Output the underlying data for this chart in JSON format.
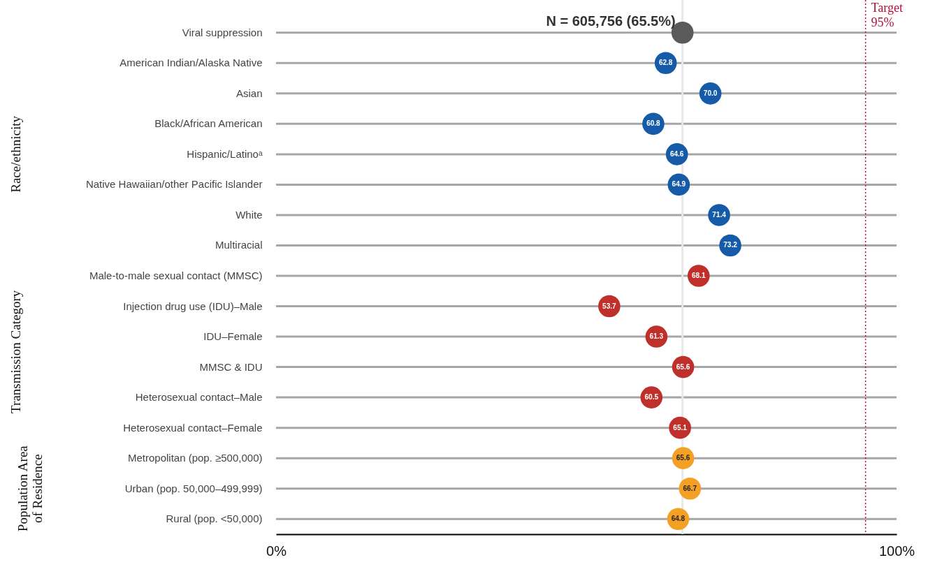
{
  "chart_data": {
    "type": "lollipop",
    "categories": [
      "Viral suppression",
      "American Indian/Alaska Native",
      "Asian",
      "Black/African American",
      "Hispanic/Latinoᵃ",
      "Native Hawaiian/other Pacific Islander",
      "White",
      "Multiracial",
      "Male-to-male sexual contact (MMSC)",
      "Injection drug use (IDU)–Male",
      "IDU–Female",
      "MMSC & IDU",
      "Heterosexual contact–Male",
      "Heterosexual contact–Female",
      "Metropolitan (pop. ≥500,000)",
      "Urban (pop. 50,000–499,999)",
      "Rural (pop. <50,000)"
    ],
    "series": [
      {
        "color": "#5a5a5a",
        "values": [
          65.5,
          null,
          null,
          null,
          null,
          null,
          null,
          null,
          null,
          null,
          null,
          null,
          null,
          null,
          null,
          null,
          null
        ],
        "value_labels": [
          "N = 605,756 (65.5%)",
          null,
          null,
          null,
          null,
          null,
          null,
          null,
          null,
          null,
          null,
          null,
          null,
          null,
          null,
          null,
          null
        ]
      },
      {
        "color": "#155ba8",
        "values": [
          null,
          62.8,
          70.0,
          60.8,
          64.6,
          64.9,
          71.4,
          73.2,
          null,
          null,
          null,
          null,
          null,
          null,
          null,
          null,
          null
        ],
        "value_labels": [
          null,
          "62.8",
          "70.0",
          "60.8",
          "64.6",
          "64.9",
          "71.4",
          "73.2",
          null,
          null,
          null,
          null,
          null,
          null,
          null,
          null,
          null
        ]
      },
      {
        "color": "#c0302a",
        "values": [
          null,
          null,
          null,
          null,
          null,
          null,
          null,
          null,
          68.1,
          53.7,
          61.3,
          65.6,
          60.5,
          65.1,
          null,
          null,
          null
        ],
        "value_labels": [
          null,
          null,
          null,
          null,
          null,
          null,
          null,
          null,
          "68.1",
          "53.7",
          "61.3",
          "65.6",
          "60.5",
          "65.1",
          null,
          null,
          null
        ]
      },
      {
        "color": "#f4a024",
        "values": [
          null,
          null,
          null,
          null,
          null,
          null,
          null,
          null,
          null,
          null,
          null,
          null,
          null,
          null,
          65.6,
          66.7,
          64.8
        ],
        "value_labels": [
          null,
          null,
          null,
          null,
          null,
          null,
          null,
          null,
          null,
          null,
          null,
          null,
          null,
          null,
          "65.6",
          "66.7",
          "64.8"
        ]
      }
    ],
    "annotations": [
      "Race/ethnicity",
      "Transmission Category",
      "Population Area of Residence"
    ],
    "xlim": [
      0,
      100
    ],
    "xticks": [
      {
        "value": 0,
        "label": "0%"
      },
      {
        "value": 100,
        "label": "100%"
      }
    ],
    "ref_lines": [
      {
        "axis": "x",
        "value": 65.5,
        "color": "#e8e8e8"
      },
      {
        "axis": "x",
        "value": 95,
        "label": "Target 95%",
        "color": "#b5103c",
        "line_style": "dotted"
      }
    ],
    "orientation": "horizontal"
  }
}
